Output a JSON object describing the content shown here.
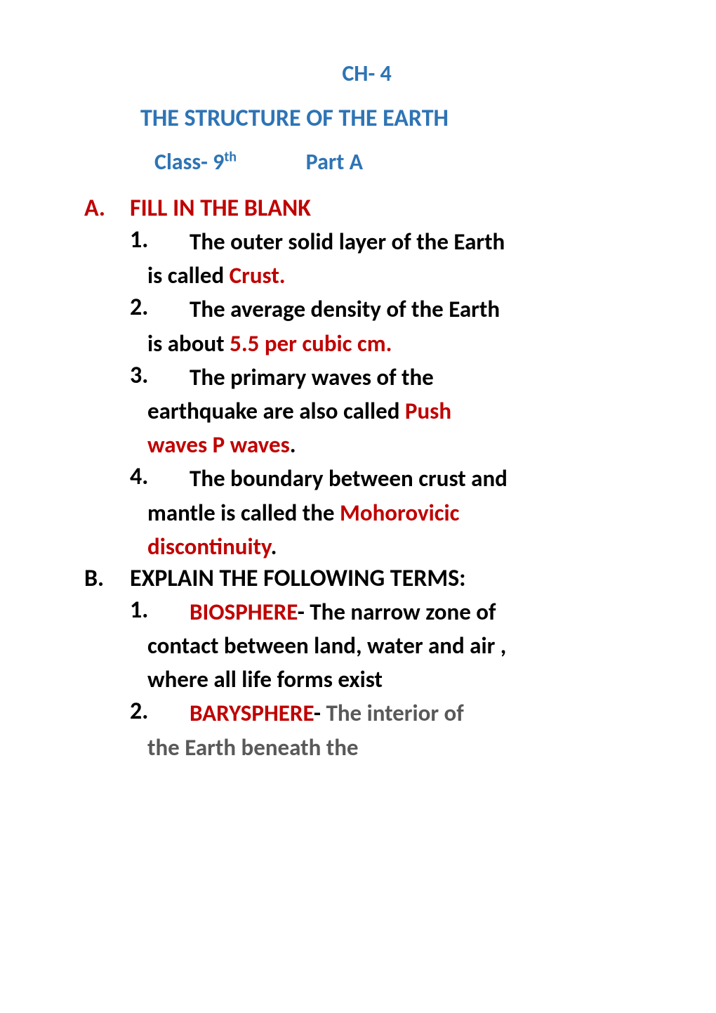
{
  "chapter": "CH- 4",
  "title": "THE STRUCTURE  OF THE EARTH",
  "class_prefix": "Class- 9",
  "class_suffix": "th",
  "part": "Part A",
  "sectionA": {
    "letter": "A.",
    "heading": "FILL IN THE BLANK",
    "items": {
      "i1": {
        "num": "1.",
        "line1": "The outer solid layer of the Earth",
        "cont1_a": "is called ",
        "cont1_b": "Crust.",
        "cont1_c": ""
      },
      "i2": {
        "num": "2.",
        "line1": "The average density of the Earth",
        "cont1_a": "is about ",
        "cont1_b": "5.5 per cubic cm."
      },
      "i3": {
        "num": "3.",
        "line1": "The primary waves of the",
        "cont1_a": "earthquake are also called ",
        "cont1_b": "Push",
        "cont2_a": "waves P waves",
        "cont2_b": "."
      },
      "i4": {
        "num": "4.",
        "line1": "The boundary between crust and",
        "cont1_a": "mantle is called the  ",
        "cont1_b": "Mohorovicic",
        "cont2_a": "discontinuity",
        "cont2_b": "."
      }
    }
  },
  "sectionB": {
    "letter": "B.",
    "heading": "EXPLAIN THE FOLLOWING TERMS:",
    "items": {
      "i1": {
        "num": "1.",
        "term": "BIOSPHERE",
        "dash_and_text": "-  The narrow zone of",
        "cont1": "contact between land, water and air ,",
        "cont2": "where all life forms exist"
      },
      "i2": {
        "num": "2.",
        "term": "BARYSPHERE",
        "dash_black": "- ",
        "text_gray": "The interior of",
        "cont1": "the Earth beneath the"
      }
    }
  }
}
